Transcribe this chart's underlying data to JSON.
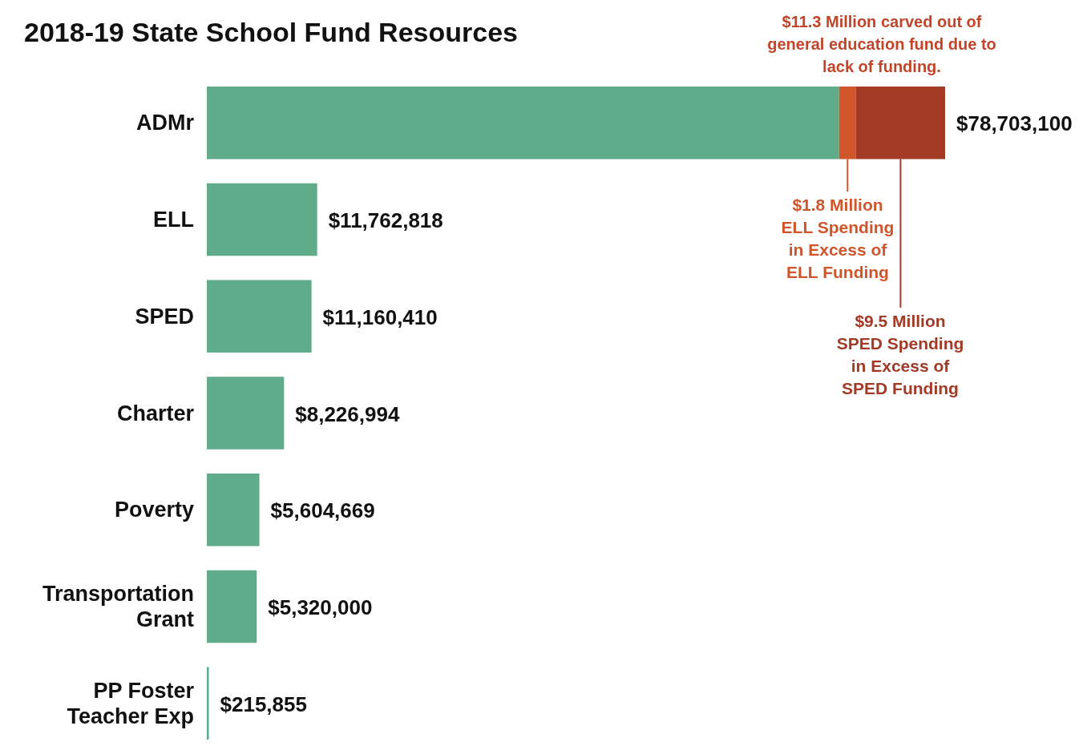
{
  "chart_data": {
    "type": "bar",
    "orientation": "horizontal",
    "stacked": true,
    "title": "2018-19 State School Fund Resources",
    "categories": [
      "ADMr",
      "ELL",
      "SPED",
      "Charter",
      "Poverty",
      "Transportation Grant",
      "PP Foster Teacher Exp"
    ],
    "series": [
      {
        "color": "#5fab8a",
        "values": [
          67403100,
          11762818,
          11160410,
          8226994,
          5604669,
          5320000,
          215855
        ],
        "value_labels": [
          null,
          "$11,762,818",
          "$11,160,410",
          "$8,226,994",
          "$5,604,669",
          "$5,320,000",
          "$215,855"
        ]
      },
      {
        "color": "#d1552b",
        "values": [
          1800000,
          null,
          null,
          null,
          null,
          null,
          null
        ]
      },
      {
        "color": "#a33a25",
        "values": [
          9500000,
          null,
          null,
          null,
          null,
          null,
          null
        ]
      }
    ],
    "totals": [
      "$78,703,100",
      null,
      null,
      null,
      null,
      null,
      null
    ],
    "annotations": [
      "$11.3 Million carved out of general education fund due to lack of funding.",
      "$1.8 Million ELL Spending in Excess of ELL Funding",
      "$9.5 Million SPED Spending in Excess of SPED Funding"
    ]
  }
}
